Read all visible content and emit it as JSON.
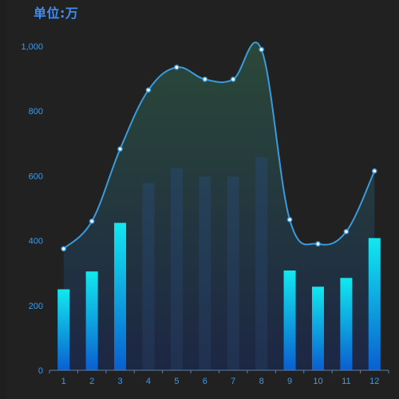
{
  "chart_data": {
    "type": "bar",
    "title": "单位:万",
    "categories": [
      "1",
      "2",
      "3",
      "4",
      "5",
      "6",
      "7",
      "8",
      "9",
      "10",
      "11",
      "12"
    ],
    "series": [
      {
        "type": "bar",
        "values": [
          250,
          305,
          455,
          578,
          623,
          598,
          598,
          658,
          308,
          258,
          285,
          408
        ]
      },
      {
        "type": "line",
        "smooth": true,
        "area": true,
        "values": [
          375,
          460,
          683,
          865,
          935,
          898,
          898,
          990,
          465,
          390,
          428,
          615
        ]
      }
    ],
    "ylim": [
      0,
      1000
    ],
    "yticks": [
      0,
      200,
      400,
      600,
      800,
      1000
    ],
    "ytick_labels": [
      "0",
      "200",
      "400",
      "600",
      "800",
      "1,000"
    ],
    "grid": false,
    "colors": {
      "bar_highlight_top": "#12e8ef",
      "bar_highlight_bottom": "#0a5fd0",
      "bar_muted": "#2a4560",
      "line": "#3a9bdc",
      "area_top": "#2d4a3a",
      "area_bottom": "#1c2a44",
      "axis_text": "#3f9ae6"
    }
  }
}
